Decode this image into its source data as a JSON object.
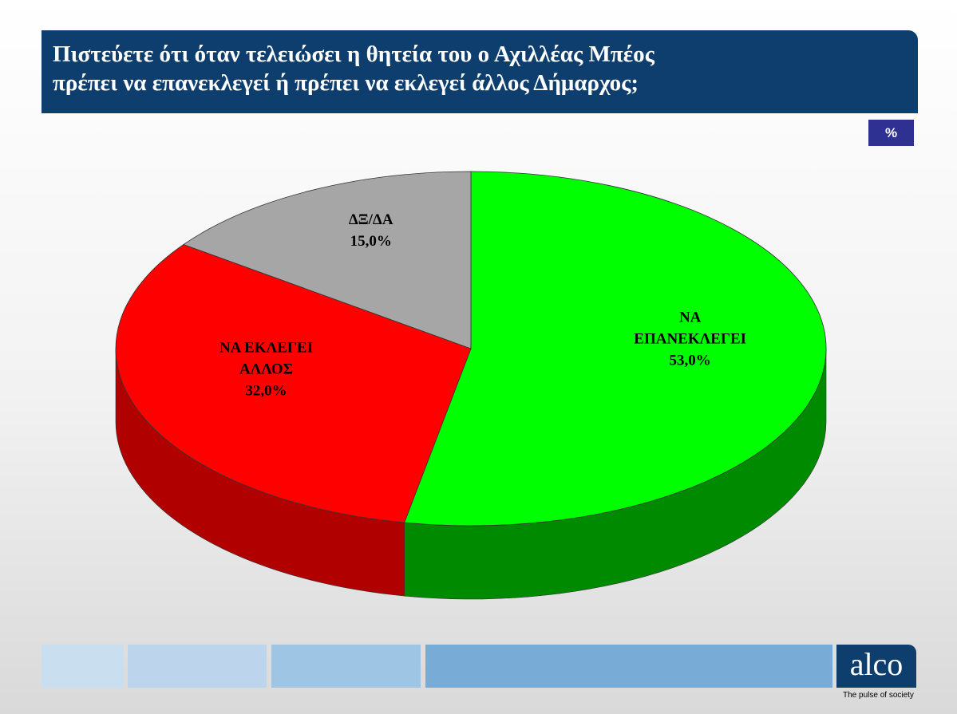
{
  "chart_data": {
    "type": "pie",
    "title": "Πιστεύετε ότι όταν τελειώσει η θητεία του ο Αχιλλέας Μπέος πρέπει να επανεκλεγεί ή πρέπει να εκλεγεί άλλος Δήμαρχος;",
    "categories": [
      "ΝΑ ΕΠΑΝΕΚΛΕΓΕΙ",
      "ΝΑ ΕΚΛΕΓΕΙ ΑΛΛΟΣ",
      "ΔΞ/ΔΑ"
    ],
    "values": [
      53,
      32,
      15
    ],
    "value_labels": [
      "53,0%",
      "32,0%",
      "15,0%"
    ],
    "colors": [
      "#00ff00",
      "#ff0000",
      "#a6a6a6"
    ],
    "side_colors": [
      "#008a00",
      "#b00000",
      "#707070"
    ]
  },
  "badge": "%",
  "logo": {
    "name": "alco",
    "tagline": "The pulse of society"
  }
}
